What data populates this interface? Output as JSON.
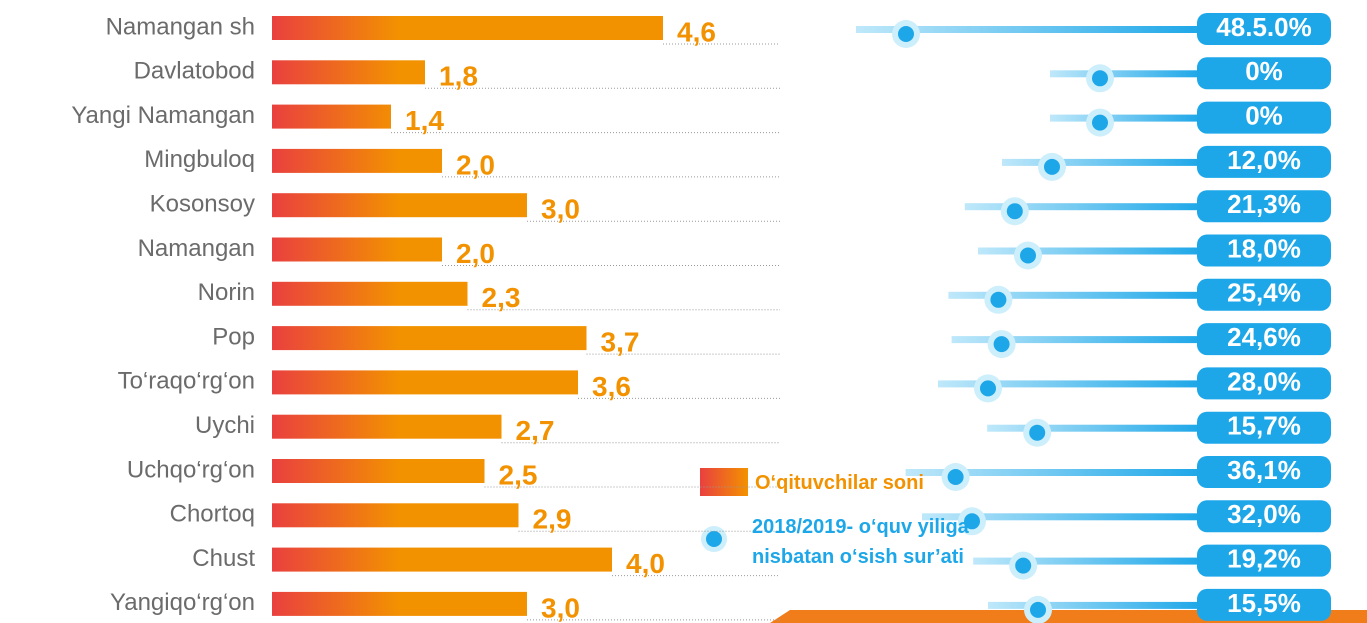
{
  "chart_data": {
    "type": "bar",
    "categories": [
      "Namangan sh",
      "Davlatobod",
      "Yangi Namangan",
      "Mingbuloq",
      "Kosonsoy",
      "Namangan",
      "Norin",
      "Pop",
      "To‘raqo‘rg‘on",
      "Uychi",
      "Uchqo‘rg‘on",
      "Chortoq",
      "Chust",
      "Yangiqo‘rg‘on"
    ],
    "series": [
      {
        "name": "O‘qituvchilar soni",
        "color": "#f39200",
        "values": [
          4.6,
          1.8,
          1.4,
          2.0,
          3.0,
          2.0,
          2.3,
          3.7,
          3.6,
          2.7,
          2.5,
          2.9,
          4.0,
          3.0
        ],
        "value_labels": [
          "4,6",
          "1,8",
          "1,4",
          "2,0",
          "3,0",
          "2,0",
          "2,3",
          "3,7",
          "3,6",
          "2,7",
          "2,5",
          "2,9",
          "4,0",
          "3,0"
        ]
      },
      {
        "name": "2018/2019- o‘quv yiliga nisbatan o‘sish sur’ati",
        "color": "#1ea7e8",
        "values": [
          48.5,
          0,
          0,
          12.0,
          21.3,
          18.0,
          25.4,
          24.6,
          28.0,
          15.7,
          36.1,
          32.0,
          19.2,
          15.5
        ],
        "value_labels": [
          "48.5.0%",
          "0%",
          "0%",
          "12,0%",
          "21,3%",
          "18,0%",
          "25,4%",
          "24,6%",
          "28,0%",
          "15,7%",
          "36,1%",
          "32,0%",
          "19,2%",
          "15,5%"
        ]
      }
    ]
  }
}
